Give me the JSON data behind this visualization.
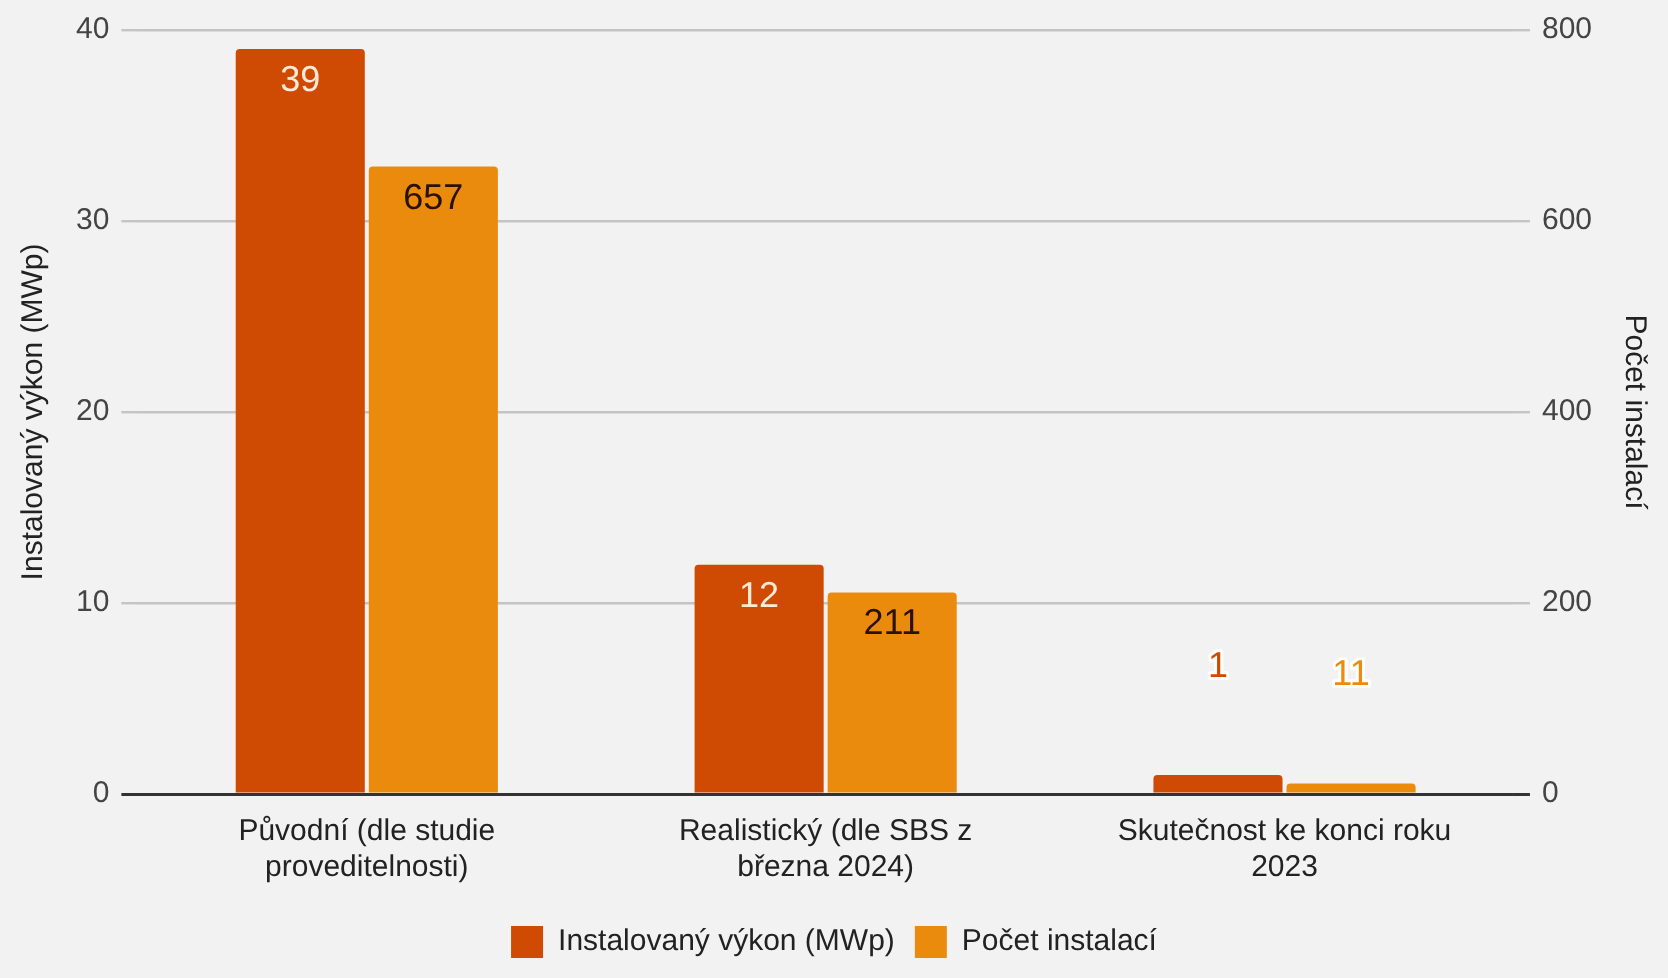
{
  "chart_data": {
    "type": "bar",
    "categories": [
      "Původní (dle studie proveditelnosti)",
      "Realistický (dle SBS z března 2024)",
      "Skutečnost ke konci roku 2023"
    ],
    "series": [
      {
        "name": "Instalovaný výkon (MWp)",
        "color": "#cf4a03",
        "values": [
          39,
          12,
          1
        ]
      },
      {
        "name": "Počet instalací",
        "color": "#ea8b0d",
        "values": [
          657,
          211,
          11
        ],
        "axis": "y2"
      }
    ],
    "ylabel": "Instalovaný výkon (MWp)",
    "y2label": "Počet instalací",
    "ylim": [
      0,
      40
    ],
    "yticks": [
      0,
      10,
      20,
      30,
      40
    ],
    "y2lim": [
      0,
      800
    ],
    "y2ticks": [
      0,
      200,
      400,
      600,
      800
    ],
    "grid": "y",
    "legend": "bottom",
    "data_labels": true
  }
}
